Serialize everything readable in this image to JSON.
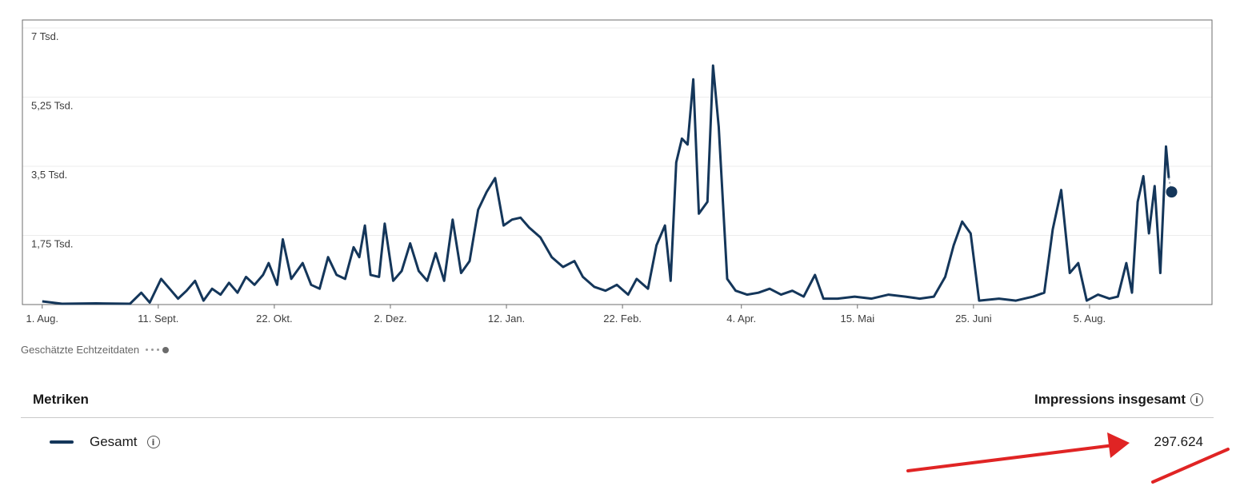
{
  "chart_data": {
    "type": "line",
    "title": "",
    "xlabel": "",
    "ylabel": "",
    "x_start": "2023-07-25",
    "x_end": "2024-09-02",
    "ylim": [
      0,
      7000
    ],
    "yticks": [
      {
        "value": 1750,
        "label": "1,75 Tsd."
      },
      {
        "value": 3500,
        "label": "3,5 Tsd."
      },
      {
        "value": 5250,
        "label": "5,25 Tsd."
      },
      {
        "value": 7000,
        "label": "7 Tsd."
      }
    ],
    "xticks": [
      {
        "date": "2023-08-01",
        "label": "1. Aug."
      },
      {
        "date": "2023-09-11",
        "label": "11. Sept."
      },
      {
        "date": "2023-10-22",
        "label": "22. Okt."
      },
      {
        "date": "2023-12-02",
        "label": "2. Dez."
      },
      {
        "date": "2024-01-12",
        "label": "12. Jan."
      },
      {
        "date": "2024-02-22",
        "label": "22. Feb."
      },
      {
        "date": "2024-04-04",
        "label": "4. Apr."
      },
      {
        "date": "2024-05-15",
        "label": "15. Mai"
      },
      {
        "date": "2024-06-25",
        "label": "25. Juni"
      },
      {
        "date": "2024-08-05",
        "label": "5. Aug."
      }
    ],
    "grid": true,
    "series": [
      {
        "name": "Gesamt",
        "color": "#14365a",
        "points": [
          [
            "2023-08-01",
            80
          ],
          [
            "2023-08-08",
            20
          ],
          [
            "2023-08-20",
            30
          ],
          [
            "2023-09-01",
            20
          ],
          [
            "2023-09-05",
            300
          ],
          [
            "2023-09-08",
            50
          ],
          [
            "2023-09-12",
            650
          ],
          [
            "2023-09-15",
            400
          ],
          [
            "2023-09-18",
            150
          ],
          [
            "2023-09-21",
            350
          ],
          [
            "2023-09-24",
            600
          ],
          [
            "2023-09-27",
            100
          ],
          [
            "2023-09-30",
            400
          ],
          [
            "2023-10-03",
            250
          ],
          [
            "2023-10-06",
            550
          ],
          [
            "2023-10-09",
            300
          ],
          [
            "2023-10-12",
            700
          ],
          [
            "2023-10-15",
            500
          ],
          [
            "2023-10-18",
            750
          ],
          [
            "2023-10-20",
            1050
          ],
          [
            "2023-10-23",
            500
          ],
          [
            "2023-10-25",
            1650
          ],
          [
            "2023-10-28",
            650
          ],
          [
            "2023-11-01",
            1050
          ],
          [
            "2023-11-04",
            500
          ],
          [
            "2023-11-07",
            400
          ],
          [
            "2023-11-10",
            1200
          ],
          [
            "2023-11-13",
            750
          ],
          [
            "2023-11-16",
            650
          ],
          [
            "2023-11-19",
            1450
          ],
          [
            "2023-11-21",
            1200
          ],
          [
            "2023-11-23",
            2000
          ],
          [
            "2023-11-25",
            750
          ],
          [
            "2023-11-28",
            700
          ],
          [
            "2023-11-30",
            2050
          ],
          [
            "2023-12-03",
            600
          ],
          [
            "2023-12-06",
            850
          ],
          [
            "2023-12-09",
            1550
          ],
          [
            "2023-12-12",
            850
          ],
          [
            "2023-12-15",
            600
          ],
          [
            "2023-12-18",
            1300
          ],
          [
            "2023-12-21",
            600
          ],
          [
            "2023-12-24",
            2150
          ],
          [
            "2023-12-27",
            800
          ],
          [
            "2023-12-30",
            1100
          ],
          [
            "2024-01-02",
            2400
          ],
          [
            "2024-01-05",
            2850
          ],
          [
            "2024-01-08",
            3200
          ],
          [
            "2024-01-11",
            2000
          ],
          [
            "2024-01-14",
            2150
          ],
          [
            "2024-01-17",
            2200
          ],
          [
            "2024-01-20",
            1950
          ],
          [
            "2024-01-24",
            1700
          ],
          [
            "2024-01-28",
            1200
          ],
          [
            "2024-02-01",
            950
          ],
          [
            "2024-02-05",
            1100
          ],
          [
            "2024-02-08",
            700
          ],
          [
            "2024-02-12",
            450
          ],
          [
            "2024-02-16",
            350
          ],
          [
            "2024-02-20",
            500
          ],
          [
            "2024-02-24",
            250
          ],
          [
            "2024-02-27",
            650
          ],
          [
            "2024-03-02",
            400
          ],
          [
            "2024-03-05",
            1500
          ],
          [
            "2024-03-08",
            2000
          ],
          [
            "2024-03-10",
            600
          ],
          [
            "2024-03-12",
            3600
          ],
          [
            "2024-03-14",
            4200
          ],
          [
            "2024-03-16",
            4050
          ],
          [
            "2024-03-18",
            5700
          ],
          [
            "2024-03-20",
            2300
          ],
          [
            "2024-03-23",
            2600
          ],
          [
            "2024-03-25",
            6050
          ],
          [
            "2024-03-27",
            4500
          ],
          [
            "2024-03-30",
            650
          ],
          [
            "2024-04-02",
            350
          ],
          [
            "2024-04-06",
            250
          ],
          [
            "2024-04-10",
            300
          ],
          [
            "2024-04-14",
            400
          ],
          [
            "2024-04-18",
            250
          ],
          [
            "2024-04-22",
            350
          ],
          [
            "2024-04-26",
            200
          ],
          [
            "2024-04-30",
            750
          ],
          [
            "2024-05-03",
            150
          ],
          [
            "2024-05-08",
            150
          ],
          [
            "2024-05-14",
            200
          ],
          [
            "2024-05-20",
            150
          ],
          [
            "2024-05-26",
            250
          ],
          [
            "2024-06-01",
            200
          ],
          [
            "2024-06-06",
            150
          ],
          [
            "2024-06-11",
            200
          ],
          [
            "2024-06-15",
            700
          ],
          [
            "2024-06-18",
            1500
          ],
          [
            "2024-06-21",
            2100
          ],
          [
            "2024-06-24",
            1800
          ],
          [
            "2024-06-27",
            100
          ],
          [
            "2024-07-04",
            150
          ],
          [
            "2024-07-10",
            100
          ],
          [
            "2024-07-16",
            200
          ],
          [
            "2024-07-20",
            300
          ],
          [
            "2024-07-23",
            1900
          ],
          [
            "2024-07-26",
            2900
          ],
          [
            "2024-07-29",
            800
          ],
          [
            "2024-08-01",
            1050
          ],
          [
            "2024-08-04",
            100
          ],
          [
            "2024-08-08",
            250
          ],
          [
            "2024-08-12",
            150
          ],
          [
            "2024-08-15",
            200
          ],
          [
            "2024-08-18",
            1050
          ],
          [
            "2024-08-20",
            300
          ],
          [
            "2024-08-22",
            2600
          ],
          [
            "2024-08-24",
            3250
          ],
          [
            "2024-08-26",
            1800
          ],
          [
            "2024-08-28",
            3000
          ],
          [
            "2024-08-30",
            800
          ],
          [
            "2024-09-01",
            4000
          ],
          [
            "2024-09-02",
            3200
          ]
        ],
        "estimate_point": [
          "2024-09-03",
          2850
        ]
      }
    ]
  },
  "estimate_legend": {
    "label": "Geschätzte Echtzeitdaten"
  },
  "metrics": {
    "header_left": "Metriken",
    "header_right": "Impressions insgesamt",
    "rows": [
      {
        "label": "Gesamt",
        "value": "297.624",
        "color": "#14365a"
      }
    ]
  },
  "annotation": {
    "color": "#e02424"
  }
}
